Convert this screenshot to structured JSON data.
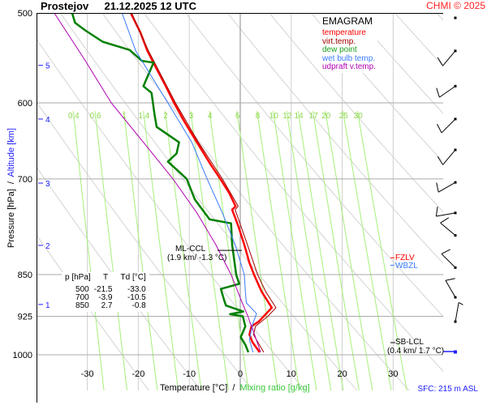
{
  "header": {
    "station": "Prostejov",
    "datetime": "21.12.2025 12 UTC",
    "copyright": "CHMI © 2025"
  },
  "legend": {
    "title": "EMAGRAM",
    "items": [
      {
        "label": "temperature",
        "color": "#ff0000"
      },
      {
        "label": "virt.temp.",
        "color": "#a00000"
      },
      {
        "label": "dew point",
        "color": "#008000"
      },
      {
        "label": "wet bulb temp.",
        "color": "#3a7bff"
      },
      {
        "label": "udpraft v.temp.",
        "color": "#b000b0"
      }
    ]
  },
  "table": {
    "headers": [
      "p [hPa]",
      "T",
      "Td [°C]"
    ],
    "rows": [
      [
        "500",
        "-21.5",
        "-33.0"
      ],
      [
        "700",
        "-3.9",
        "-10.5"
      ],
      [
        "850",
        "2.7",
        "-0.8"
      ]
    ]
  },
  "annotations": {
    "ml_ccl": "ML-CCL",
    "ml_ccl_detail": "(1.9 km/ -1.3 °C)",
    "sb_lcl": "SB-LCL",
    "sb_lcl_detail": "(0.4 km/ 1.7 °C)",
    "fzlv": "FZLV",
    "wbzl": "WBZL",
    "sfc": "SFC: 215 m ASL"
  },
  "chart_data": {
    "type": "line",
    "title": "Prostejov 21.12.2025 12 UTC",
    "xlabel": "Temperature [°C]",
    "xlabel2": "Mixing ratio [g/kg]",
    "xlabel_sep": "/",
    "ylabel": "Pressure [hPa]",
    "ylabel_sep": "/",
    "ylabel2": "Altitude [km]",
    "xlim": [
      -30,
      30
    ],
    "ylim": [
      1000,
      500
    ],
    "x_ticks": [
      "-30",
      "-20",
      "-10",
      "0",
      "10",
      "20",
      "30"
    ],
    "x_tick_values": [
      -30,
      -20,
      -10,
      0,
      10,
      20,
      30
    ],
    "y_ticks": [
      "500",
      "600",
      "700",
      "850",
      "925",
      "1000"
    ],
    "y_tick_values": [
      500,
      600,
      700,
      850,
      925,
      1000
    ],
    "altitude_ticks": [
      {
        "label": "5",
        "p": 556
      },
      {
        "label": "4",
        "p": 620
      },
      {
        "label": "3",
        "p": 706
      },
      {
        "label": "2",
        "p": 801
      },
      {
        "label": "1",
        "p": 903
      }
    ],
    "mixing_ratio_labels": [
      "0.4",
      "0.6",
      "1",
      "1.4",
      "2",
      "3",
      "4",
      "6",
      "8",
      "10",
      "12",
      "14",
      "17",
      "20",
      "25",
      "30"
    ],
    "mixing_ratio_values": [
      0.4,
      0.6,
      1,
      1.4,
      2,
      3,
      4,
      6,
      8,
      10,
      12,
      14,
      17,
      20,
      25,
      30
    ],
    "series": [
      {
        "name": "temperature",
        "color": "#ff0000",
        "width": 2.5,
        "points": [
          [
            500,
            -21.5
          ],
          [
            520,
            -19.6
          ],
          [
            540,
            -18.2
          ],
          [
            560,
            -16.4
          ],
          [
            580,
            -14.6
          ],
          [
            600,
            -13
          ],
          [
            625,
            -10.8
          ],
          [
            650,
            -8.5
          ],
          [
            680,
            -5.8
          ],
          [
            700,
            -3.9
          ],
          [
            720,
            -2.2
          ],
          [
            740,
            -0.9
          ],
          [
            745,
            -1.6
          ],
          [
            770,
            -0.4
          ],
          [
            800,
            0.8
          ],
          [
            830,
            1.8
          ],
          [
            850,
            2.7
          ],
          [
            880,
            4.2
          ],
          [
            909,
            6.2
          ],
          [
            925,
            4.6
          ],
          [
            935,
            3.6
          ],
          [
            944,
            2.2
          ],
          [
            960,
            1.8
          ],
          [
            975,
            2.4
          ],
          [
            995,
            3.8
          ]
        ]
      },
      {
        "name": "virt.temp.",
        "color": "#a00000",
        "width": 1,
        "points": [
          [
            500,
            -21.3
          ],
          [
            540,
            -18
          ],
          [
            600,
            -12.7
          ],
          [
            650,
            -8.2
          ],
          [
            700,
            -3.5
          ],
          [
            740,
            -0.4
          ],
          [
            745,
            -1
          ],
          [
            800,
            1.4
          ],
          [
            850,
            3.4
          ],
          [
            880,
            5
          ],
          [
            909,
            7
          ],
          [
            925,
            5.4
          ],
          [
            944,
            3
          ],
          [
            960,
            2.6
          ],
          [
            995,
            4.6
          ]
        ]
      },
      {
        "name": "dew point",
        "color": "#008000",
        "width": 2.5,
        "points": [
          [
            500,
            -33
          ],
          [
            510,
            -32.4
          ],
          [
            518,
            -30.4
          ],
          [
            530,
            -27
          ],
          [
            539,
            -21.7
          ],
          [
            551,
            -19.3
          ],
          [
            553,
            -17
          ],
          [
            580,
            -19
          ],
          [
            588,
            -17.4
          ],
          [
            615,
            -16.8
          ],
          [
            630,
            -16.4
          ],
          [
            650,
            -12
          ],
          [
            665,
            -12.5
          ],
          [
            676,
            -14.2
          ],
          [
            690,
            -12
          ],
          [
            700,
            -10.5
          ],
          [
            730,
            -8.9
          ],
          [
            760,
            -6
          ],
          [
            766,
            -1.8
          ],
          [
            800,
            -1.6
          ],
          [
            850,
            -0.8
          ],
          [
            866,
            -0.2
          ],
          [
            875,
            -3.8
          ],
          [
            894,
            -3.2
          ],
          [
            905,
            -2.8
          ],
          [
            916,
            0.6
          ],
          [
            921,
            -2
          ],
          [
            925,
            0.5
          ],
          [
            944,
            1
          ],
          [
            965,
            0.1
          ],
          [
            980,
            1
          ],
          [
            995,
            1.6
          ]
        ]
      },
      {
        "name": "wet bulb temp.",
        "color": "#3a7bff",
        "width": 1,
        "points": [
          [
            500,
            -23.2
          ],
          [
            540,
            -20.5
          ],
          [
            600,
            -14.2
          ],
          [
            650,
            -9.5
          ],
          [
            700,
            -6.5
          ],
          [
            750,
            -3.5
          ],
          [
            800,
            -1
          ],
          [
            850,
            0.8
          ],
          [
            880,
            1
          ],
          [
            900,
            1.2
          ],
          [
            920,
            3.2
          ],
          [
            935,
            2.6
          ],
          [
            950,
            2.2
          ],
          [
            970,
            1.8
          ],
          [
            995,
            2.5
          ]
        ]
      },
      {
        "name": "udpraft v.temp.",
        "color": "#b000b0",
        "width": 1,
        "points": [
          [
            500,
            -36.5
          ],
          [
            550,
            -30.5
          ],
          [
            600,
            -25.3
          ],
          [
            650,
            -19
          ],
          [
            700,
            -13.2
          ],
          [
            750,
            -8.5
          ],
          [
            800,
            -4.8
          ],
          [
            850,
            -1.8
          ],
          [
            900,
            0.4
          ],
          [
            925,
            1.5
          ],
          [
            960,
            2.8
          ],
          [
            995,
            4
          ]
        ]
      }
    ],
    "freezing_level_p": 808,
    "wet_bulb_zero_p": 815,
    "ml_ccl_p": 800,
    "sb_lcl_p": 985,
    "wind_barbs": [
      {
        "p": 505,
        "dir": 0,
        "kt": 0
      },
      {
        "p": 540,
        "dir": 220,
        "kt": 10
      },
      {
        "p": 580,
        "dir": 235,
        "kt": 10
      },
      {
        "p": 620,
        "dir": 225,
        "kt": 10
      },
      {
        "p": 660,
        "dir": 220,
        "kt": 10
      },
      {
        "p": 705,
        "dir": 240,
        "kt": 10
      },
      {
        "p": 750,
        "dir": 260,
        "kt": 10
      },
      {
        "p": 785,
        "dir": 310,
        "kt": 10
      },
      {
        "p": 838,
        "dir": 315,
        "kt": 10
      },
      {
        "p": 890,
        "dir": 330,
        "kt": 10
      },
      {
        "p": 935,
        "dir": 10,
        "kt": 5
      }
    ]
  }
}
